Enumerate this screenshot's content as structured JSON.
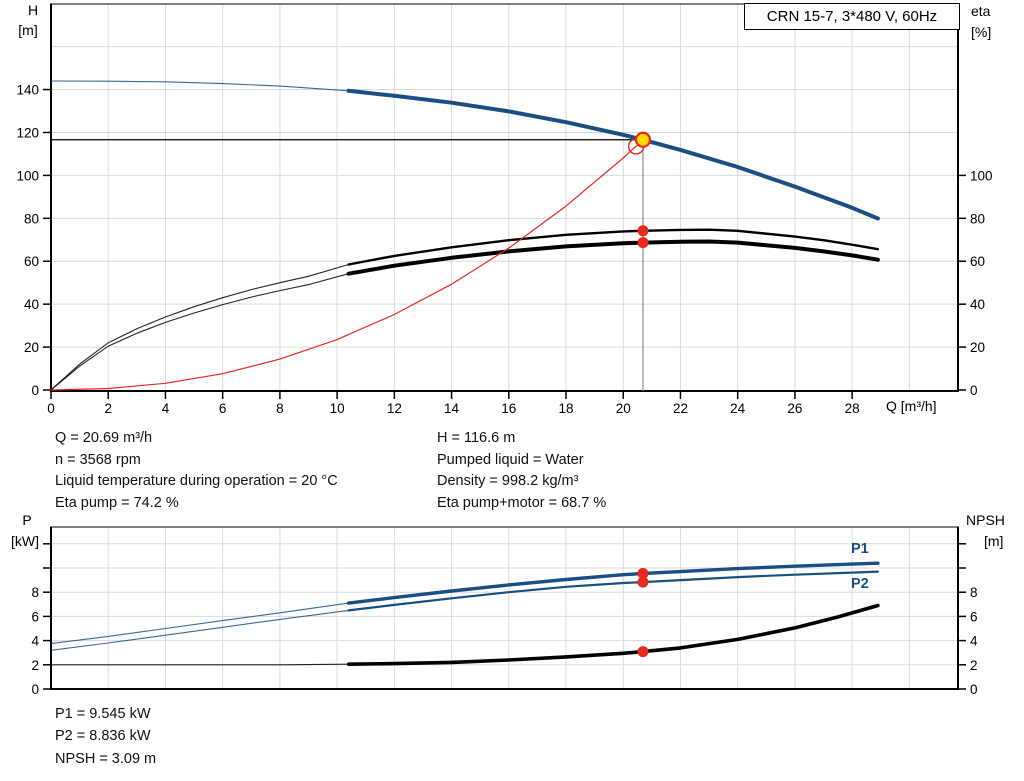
{
  "title_box": {
    "text": "CRN 15-7, 3*480 V, 60Hz"
  },
  "colors": {
    "curve_blue": "#1b4e82",
    "curve_black": "#000000",
    "thin_gray": "#555555",
    "red": "#e8291f",
    "yellow": "#ffdd00",
    "grid": "#d9d9d9",
    "axis": "#000000",
    "duty_vline": "#8c8c8c",
    "text": "#111111"
  },
  "axis_labels": {
    "top_left_1": "H",
    "top_left_2": "[m]",
    "top_right_1": "eta",
    "top_right_2": "[%]",
    "top_x": "Q [m³/h]",
    "bottom_left_1": "P",
    "bottom_left_2": "[kW]",
    "bottom_right_1": "NPSH",
    "bottom_right_2": "[m]"
  },
  "curve_labels": {
    "p1": "P1",
    "p2": "P2"
  },
  "info_top_left": [
    "Q = 20.69 m³/h",
    "n = 3568 rpm",
    "Liquid temperature during operation = 20 °C",
    "Eta pump = 74.2 %"
  ],
  "info_top_right": [
    "H = 116.6 m",
    "Pumped liquid = Water",
    "Density = 998.2 kg/m³",
    "Eta pump+motor = 68.7 %"
  ],
  "info_bottom": [
    "P1 = 9.545 kW",
    "P2 = 8.836 kW",
    "NPSH = 3.09 m"
  ],
  "chart_data": [
    {
      "id": "head-efficiency-chart",
      "type": "line",
      "title": "CRN 15-7, 3*480 V, 60Hz",
      "xlabel": "Q [m³/h]",
      "ylabel_left": "H [m]",
      "ylabel_right": "eta [%]",
      "xlim": [
        0,
        31.7
      ],
      "ylim_left": [
        0,
        180
      ],
      "ylim_right_note": "eta % plotted on same numeric scale as H (0-100 aligns with H 0-100)",
      "x_ticks": [
        0,
        2,
        4,
        6,
        8,
        10,
        12,
        14,
        16,
        18,
        20,
        22,
        24,
        26,
        28
      ],
      "y_left_ticks": [
        0,
        20,
        40,
        60,
        80,
        100,
        120,
        140
      ],
      "y_right_ticks": [
        0,
        20,
        40,
        60,
        80,
        100
      ],
      "grid_x": [
        2,
        4,
        6,
        8,
        10,
        12,
        14,
        16,
        18,
        20,
        22,
        24,
        26,
        28,
        30
      ],
      "grid_y": [
        20,
        40,
        60,
        80,
        100,
        120,
        140,
        160
      ],
      "thick_from": 10.4,
      "series": [
        {
          "name": "QH pump curve (n=3568 rpm)",
          "axis": "H",
          "color_key": "curve_blue",
          "thick": 4,
          "points": [
            [
              0,
              144
            ],
            [
              2,
              143.9
            ],
            [
              4,
              143.6
            ],
            [
              6,
              142.8
            ],
            [
              8,
              141.6
            ],
            [
              10.4,
              139.4
            ],
            [
              12,
              137.1
            ],
            [
              14,
              133.9
            ],
            [
              16,
              129.8
            ],
            [
              18,
              124.8
            ],
            [
              20,
              118.9
            ],
            [
              20.69,
              116.6
            ],
            [
              22,
              111.9
            ],
            [
              24,
              103.9
            ],
            [
              26,
              94.8
            ],
            [
              28,
              84.9
            ],
            [
              28.9,
              79.9
            ]
          ]
        },
        {
          "name": "eta pump",
          "axis": "eta",
          "color_key": "curve_black",
          "thick": 2.4,
          "points": [
            [
              0,
              0
            ],
            [
              1,
              12
            ],
            [
              2,
              22
            ],
            [
              3,
              28.5
            ],
            [
              4,
              34
            ],
            [
              5,
              38.8
            ],
            [
              6,
              43
            ],
            [
              7,
              46.8
            ],
            [
              8,
              50
            ],
            [
              9,
              53
            ],
            [
              10.4,
              58.5
            ],
            [
              12,
              62.5
            ],
            [
              14,
              66.5
            ],
            [
              16,
              69.8
            ],
            [
              18,
              72.3
            ],
            [
              20,
              73.9
            ],
            [
              20.69,
              74.2
            ],
            [
              22,
              74.6
            ],
            [
              23,
              74.7
            ],
            [
              24,
              74.2
            ],
            [
              26,
              71.5
            ],
            [
              27,
              69.8
            ],
            [
              28,
              67.7
            ],
            [
              28.9,
              65.6
            ]
          ]
        },
        {
          "name": "eta pump+motor",
          "axis": "eta",
          "color_key": "curve_black",
          "thick": 4,
          "points": [
            [
              0,
              0
            ],
            [
              1,
              11.1
            ],
            [
              2,
              20.4
            ],
            [
              3,
              26.4
            ],
            [
              4,
              31.5
            ],
            [
              5,
              35.9
            ],
            [
              6,
              39.8
            ],
            [
              7,
              43.3
            ],
            [
              8,
              46.3
            ],
            [
              9,
              49.1
            ],
            [
              10.4,
              54.2
            ],
            [
              12,
              57.9
            ],
            [
              14,
              61.6
            ],
            [
              16,
              64.6
            ],
            [
              18,
              66.9
            ],
            [
              20,
              68.4
            ],
            [
              20.69,
              68.7
            ],
            [
              22,
              69.1
            ],
            [
              23,
              69.2
            ],
            [
              24,
              68.7
            ],
            [
              26,
              66.2
            ],
            [
              27,
              64.6
            ],
            [
              28,
              62.7
            ],
            [
              28.9,
              60.7
            ]
          ]
        },
        {
          "name": "system curve",
          "axis": "H",
          "color_key": "red",
          "thick": 1.2,
          "always_thin": true,
          "points": [
            [
              0,
              0
            ],
            [
              2,
              0.7
            ],
            [
              4,
              3.1
            ],
            [
              6,
              7.6
            ],
            [
              8,
              14.4
            ],
            [
              10,
              23.5
            ],
            [
              12,
              35.2
            ],
            [
              14,
              49.3
            ],
            [
              16,
              66.1
            ],
            [
              18,
              85.7
            ],
            [
              20,
              108.1
            ],
            [
              20.69,
              116.6
            ]
          ]
        }
      ],
      "duty_point": {
        "q": 20.69,
        "h": 116.6,
        "eta_pump": 74.2,
        "eta_pump_motor": 68.7,
        "system_marker": {
          "q": 20.45,
          "h": 113.5
        }
      }
    },
    {
      "id": "power-npsh-chart",
      "type": "line",
      "xlabel": "",
      "ylabel_left": "P [kW]",
      "ylabel_right": "NPSH [m]",
      "xlim": [
        0,
        31.7
      ],
      "ylim_left": [
        0,
        13.4
      ],
      "y_left_ticks": [
        0,
        2,
        4,
        6,
        8
      ],
      "y_left_unlabeled_ticks": [
        10,
        12
      ],
      "y_right_ticks": [
        0,
        2,
        4,
        6,
        8
      ],
      "y_right_unlabeled_ticks": [
        10,
        12
      ],
      "grid_x": [
        2,
        4,
        6,
        8,
        10,
        12,
        14,
        16,
        18,
        20,
        22,
        24,
        26,
        28,
        30
      ],
      "grid_y": [
        2,
        4,
        6,
        8,
        10,
        12
      ],
      "thick_from": 10.4,
      "series": [
        {
          "name": "P1 (input power)",
          "axis": "P",
          "color_key": "curve_blue",
          "thick": 3.4,
          "points": [
            [
              0,
              3.75
            ],
            [
              2,
              4.35
            ],
            [
              4,
              5.0
            ],
            [
              6,
              5.65
            ],
            [
              8,
              6.3
            ],
            [
              10.4,
              7.1
            ],
            [
              12,
              7.55
            ],
            [
              14,
              8.1
            ],
            [
              16,
              8.6
            ],
            [
              18,
              9.05
            ],
            [
              20,
              9.45
            ],
            [
              20.69,
              9.545
            ],
            [
              22,
              9.7
            ],
            [
              24,
              9.95
            ],
            [
              26,
              10.15
            ],
            [
              28,
              10.32
            ],
            [
              28.9,
              10.4
            ]
          ]
        },
        {
          "name": "P2 (shaft power)",
          "axis": "P",
          "color_key": "curve_blue",
          "thick": 2.2,
          "points": [
            [
              0,
              3.2
            ],
            [
              2,
              3.8
            ],
            [
              4,
              4.45
            ],
            [
              6,
              5.1
            ],
            [
              8,
              5.75
            ],
            [
              10.4,
              6.5
            ],
            [
              12,
              6.95
            ],
            [
              14,
              7.5
            ],
            [
              16,
              8.0
            ],
            [
              18,
              8.45
            ],
            [
              20,
              8.76
            ],
            [
              20.69,
              8.836
            ],
            [
              22,
              9.0
            ],
            [
              24,
              9.25
            ],
            [
              26,
              9.45
            ],
            [
              28,
              9.62
            ],
            [
              28.9,
              9.7
            ]
          ]
        },
        {
          "name": "NPSH",
          "axis": "NPSH",
          "color_key": "curve_black",
          "thick": 3.6,
          "points": [
            [
              0,
              2.0
            ],
            [
              4,
              2.0
            ],
            [
              8,
              2.0
            ],
            [
              10.4,
              2.05
            ],
            [
              12,
              2.1
            ],
            [
              14,
              2.2
            ],
            [
              16,
              2.4
            ],
            [
              18,
              2.65
            ],
            [
              20,
              2.95
            ],
            [
              20.69,
              3.09
            ],
            [
              22,
              3.4
            ],
            [
              24,
              4.1
            ],
            [
              26,
              5.05
            ],
            [
              27.5,
              5.95
            ],
            [
              28.9,
              6.9
            ]
          ]
        }
      ],
      "duty_point": {
        "q": 20.69,
        "p1": 9.545,
        "p2": 8.836,
        "npsh": 3.09
      }
    }
  ]
}
